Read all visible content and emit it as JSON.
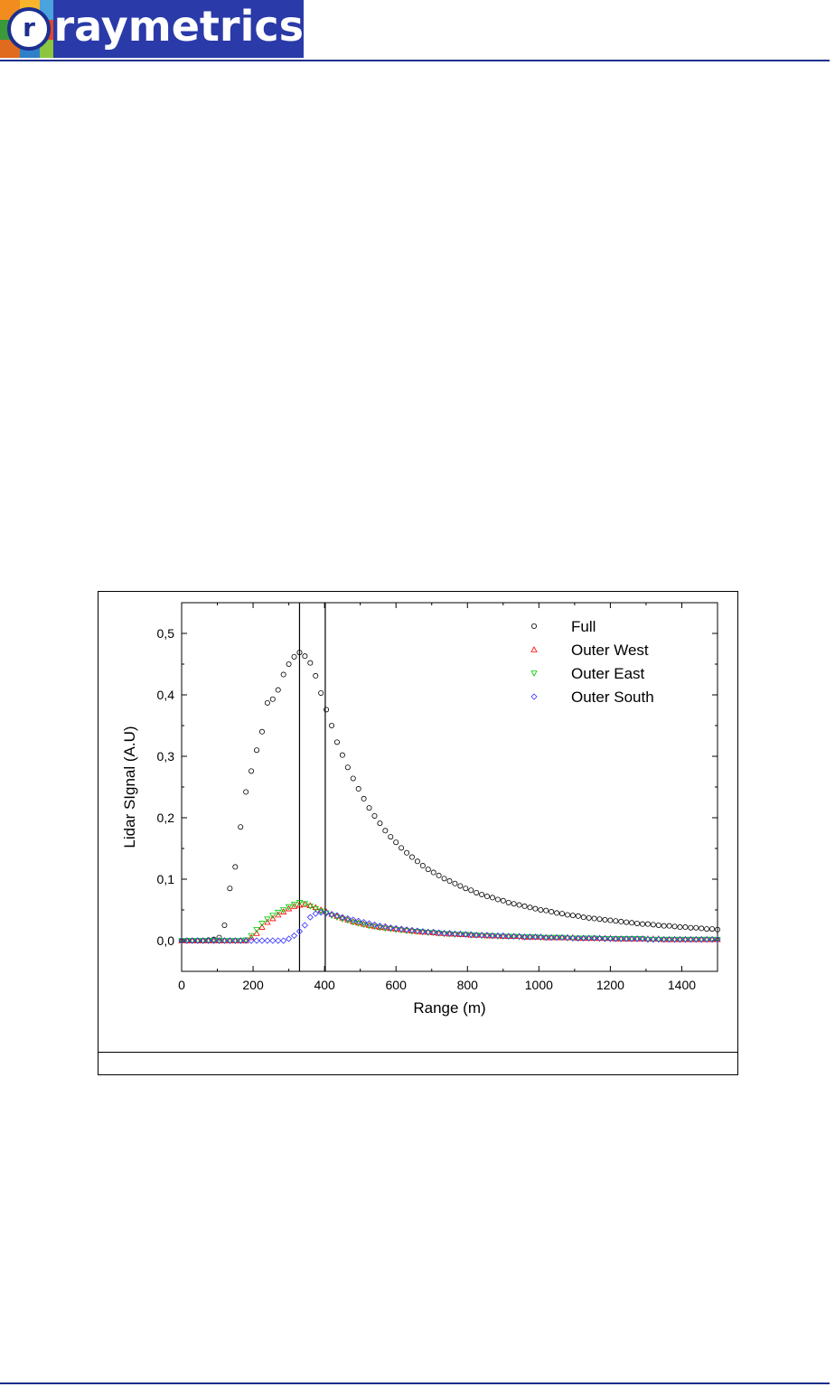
{
  "header": {
    "logo_letter": "r",
    "logo_word": "raymetrics"
  },
  "colors": {
    "brand_blue": "#2a3aa8",
    "rule_blue": "#1c2f8c",
    "full": "#000000",
    "outer_west": "#ff0000",
    "outer_east": "#00cc00",
    "outer_south": "#3333ff"
  },
  "figure": {
    "caption": ""
  },
  "chart_data": {
    "type": "scatter",
    "title": "",
    "xlabel": "Range (m)",
    "ylabel": "Lidar SIgnal (A.U)",
    "xlim": [
      0,
      1500
    ],
    "ylim": [
      -0.05,
      0.55
    ],
    "xticks": [
      0,
      200,
      400,
      600,
      800,
      1000,
      1200,
      1400
    ],
    "xtick_labels": [
      "0",
      "200",
      "400",
      "600",
      "800",
      "1000",
      "1200",
      "1400"
    ],
    "yticks": [
      0.0,
      0.1,
      0.2,
      0.3,
      0.4,
      0.5
    ],
    "ytick_labels": [
      "0,0",
      "0,1",
      "0,2",
      "0,3",
      "0,4",
      "0,5"
    ],
    "grid": false,
    "legend_position": "top-right",
    "vlines": [
      330,
      402
    ],
    "series": [
      {
        "name": "Full",
        "marker": "circle",
        "color": "#000000",
        "x": [
          0,
          15,
          30,
          45,
          60,
          75,
          90,
          105,
          120,
          135,
          150,
          165,
          180,
          195,
          210,
          225,
          240,
          255,
          270,
          285,
          300,
          315,
          330,
          345,
          360,
          375,
          390,
          405,
          420,
          435,
          450,
          465,
          480,
          495,
          510,
          525,
          540,
          555,
          570,
          585,
          600,
          615,
          630,
          645,
          660,
          675,
          690,
          705,
          720,
          735,
          750,
          765,
          780,
          795,
          810,
          825,
          840,
          855,
          870,
          885,
          900,
          915,
          930,
          945,
          960,
          975,
          990,
          1005,
          1020,
          1035,
          1050,
          1065,
          1080,
          1095,
          1110,
          1125,
          1140,
          1155,
          1170,
          1185,
          1200,
          1215,
          1230,
          1245,
          1260,
          1275,
          1290,
          1305,
          1320,
          1335,
          1350,
          1365,
          1380,
          1395,
          1410,
          1425,
          1440,
          1455,
          1470,
          1485,
          1500
        ],
        "y": [
          0.0,
          0.0,
          0.0,
          0.0,
          0.0,
          0.001,
          0.002,
          0.005,
          0.025,
          0.085,
          0.12,
          0.185,
          0.242,
          0.276,
          0.31,
          0.34,
          0.387,
          0.393,
          0.408,
          0.433,
          0.45,
          0.462,
          0.469,
          0.463,
          0.452,
          0.431,
          0.403,
          0.376,
          0.35,
          0.323,
          0.302,
          0.282,
          0.264,
          0.247,
          0.231,
          0.216,
          0.203,
          0.191,
          0.179,
          0.169,
          0.16,
          0.151,
          0.143,
          0.136,
          0.129,
          0.122,
          0.116,
          0.111,
          0.106,
          0.101,
          0.097,
          0.093,
          0.089,
          0.085,
          0.082,
          0.078,
          0.075,
          0.072,
          0.07,
          0.067,
          0.065,
          0.062,
          0.06,
          0.058,
          0.056,
          0.054,
          0.052,
          0.05,
          0.049,
          0.047,
          0.045,
          0.044,
          0.042,
          0.041,
          0.04,
          0.038,
          0.037,
          0.036,
          0.035,
          0.034,
          0.033,
          0.032,
          0.031,
          0.03,
          0.029,
          0.028,
          0.027,
          0.027,
          0.026,
          0.025,
          0.024,
          0.024,
          0.023,
          0.022,
          0.022,
          0.021,
          0.021,
          0.02,
          0.019,
          0.019,
          0.018
        ]
      },
      {
        "name": "Outer West",
        "marker": "triangle-up",
        "color": "#ff0000",
        "x": [
          0,
          15,
          30,
          45,
          60,
          75,
          90,
          105,
          120,
          135,
          150,
          165,
          180,
          195,
          210,
          225,
          240,
          255,
          270,
          285,
          300,
          315,
          330,
          345,
          360,
          375,
          390,
          405,
          420,
          435,
          450,
          465,
          480,
          495,
          510,
          525,
          540,
          555,
          570,
          585,
          600,
          615,
          630,
          645,
          660,
          675,
          690,
          705,
          720,
          735,
          750,
          765,
          780,
          795,
          810,
          825,
          840,
          855,
          870,
          885,
          900,
          915,
          930,
          945,
          960,
          975,
          990,
          1005,
          1020,
          1035,
          1050,
          1065,
          1080,
          1095,
          1110,
          1125,
          1140,
          1155,
          1170,
          1185,
          1200,
          1215,
          1230,
          1245,
          1260,
          1275,
          1290,
          1305,
          1320,
          1335,
          1350,
          1365,
          1380,
          1395,
          1410,
          1425,
          1440,
          1455,
          1470,
          1485,
          1500
        ],
        "y": [
          0.0,
          0.0,
          0.0,
          0.0,
          0.0,
          0.0,
          0.0,
          0.0,
          0.0,
          0.0,
          0.0,
          0.0,
          0.0,
          0.005,
          0.012,
          0.022,
          0.03,
          0.036,
          0.042,
          0.047,
          0.052,
          0.056,
          0.058,
          0.059,
          0.057,
          0.054,
          0.05,
          0.047,
          0.043,
          0.04,
          0.037,
          0.034,
          0.031,
          0.029,
          0.027,
          0.025,
          0.023,
          0.022,
          0.021,
          0.02,
          0.019,
          0.018,
          0.017,
          0.016,
          0.015,
          0.014,
          0.014,
          0.013,
          0.012,
          0.012,
          0.011,
          0.011,
          0.01,
          0.01,
          0.009,
          0.009,
          0.009,
          0.008,
          0.008,
          0.008,
          0.007,
          0.007,
          0.007,
          0.007,
          0.006,
          0.006,
          0.006,
          0.006,
          0.005,
          0.005,
          0.005,
          0.005,
          0.005,
          0.005,
          0.004,
          0.004,
          0.004,
          0.004,
          0.004,
          0.004,
          0.004,
          0.003,
          0.003,
          0.003,
          0.003,
          0.003,
          0.003,
          0.003,
          0.003,
          0.003,
          0.002,
          0.002,
          0.002,
          0.002,
          0.002,
          0.002,
          0.002,
          0.002,
          0.002,
          0.002,
          0.002
        ]
      },
      {
        "name": "Outer East",
        "marker": "triangle-down",
        "color": "#00cc00",
        "x": [
          0,
          15,
          30,
          45,
          60,
          75,
          90,
          105,
          120,
          135,
          150,
          165,
          180,
          195,
          210,
          225,
          240,
          255,
          270,
          285,
          300,
          315,
          330,
          345,
          360,
          375,
          390,
          405,
          420,
          435,
          450,
          465,
          480,
          495,
          510,
          525,
          540,
          555,
          570,
          585,
          600,
          615,
          630,
          645,
          660,
          675,
          690,
          705,
          720,
          735,
          750,
          765,
          780,
          795,
          810,
          825,
          840,
          855,
          870,
          885,
          900,
          915,
          930,
          945,
          960,
          975,
          990,
          1005,
          1020,
          1035,
          1050,
          1065,
          1080,
          1095,
          1110,
          1125,
          1140,
          1155,
          1170,
          1185,
          1200,
          1215,
          1230,
          1245,
          1260,
          1275,
          1290,
          1305,
          1320,
          1335,
          1350,
          1365,
          1380,
          1395,
          1410,
          1425,
          1440,
          1455,
          1470,
          1485,
          1500
        ],
        "y": [
          0.0,
          0.0,
          0.0,
          0.0,
          0.0,
          0.0,
          0.0,
          0.0,
          0.0,
          0.0,
          0.0,
          0.0,
          0.001,
          0.008,
          0.018,
          0.028,
          0.035,
          0.041,
          0.046,
          0.05,
          0.055,
          0.059,
          0.062,
          0.06,
          0.056,
          0.052,
          0.048,
          0.045,
          0.041,
          0.038,
          0.035,
          0.033,
          0.03,
          0.028,
          0.026,
          0.024,
          0.023,
          0.021,
          0.02,
          0.019,
          0.018,
          0.017,
          0.016,
          0.015,
          0.015,
          0.014,
          0.013,
          0.013,
          0.012,
          0.011,
          0.011,
          0.01,
          0.01,
          0.01,
          0.009,
          0.009,
          0.008,
          0.008,
          0.008,
          0.007,
          0.007,
          0.007,
          0.007,
          0.006,
          0.006,
          0.006,
          0.006,
          0.005,
          0.005,
          0.005,
          0.005,
          0.005,
          0.004,
          0.004,
          0.004,
          0.004,
          0.004,
          0.004,
          0.003,
          0.003,
          0.003,
          0.003,
          0.003,
          0.003,
          0.003,
          0.003,
          0.003,
          0.002,
          0.002,
          0.002,
          0.002,
          0.002,
          0.002,
          0.002,
          0.002,
          0.002,
          0.002,
          0.002,
          0.002,
          0.002,
          0.002
        ]
      },
      {
        "name": "Outer South",
        "marker": "diamond",
        "color": "#3333ff",
        "x": [
          0,
          15,
          30,
          45,
          60,
          75,
          90,
          105,
          120,
          135,
          150,
          165,
          180,
          195,
          210,
          225,
          240,
          255,
          270,
          285,
          300,
          315,
          330,
          345,
          360,
          375,
          390,
          405,
          420,
          435,
          450,
          465,
          480,
          495,
          510,
          525,
          540,
          555,
          570,
          585,
          600,
          615,
          630,
          645,
          660,
          675,
          690,
          705,
          720,
          735,
          750,
          765,
          780,
          795,
          810,
          825,
          840,
          855,
          870,
          885,
          900,
          915,
          930,
          945,
          960,
          975,
          990,
          1005,
          1020,
          1035,
          1050,
          1065,
          1080,
          1095,
          1110,
          1125,
          1140,
          1155,
          1170,
          1185,
          1200,
          1215,
          1230,
          1245,
          1260,
          1275,
          1290,
          1305,
          1320,
          1335,
          1350,
          1365,
          1380,
          1395,
          1410,
          1425,
          1440,
          1455,
          1470,
          1485,
          1500
        ],
        "y": [
          0.0,
          0.0,
          0.0,
          0.0,
          0.0,
          0.0,
          0.0,
          0.0,
          0.0,
          0.0,
          0.0,
          0.0,
          0.0,
          0.0,
          0.0,
          0.0,
          0.0,
          0.0,
          0.0,
          0.0,
          0.003,
          0.008,
          0.015,
          0.025,
          0.038,
          0.044,
          0.046,
          0.045,
          0.043,
          0.041,
          0.038,
          0.036,
          0.034,
          0.032,
          0.03,
          0.028,
          0.026,
          0.024,
          0.023,
          0.021,
          0.02,
          0.019,
          0.018,
          0.017,
          0.016,
          0.015,
          0.014,
          0.014,
          0.013,
          0.012,
          0.012,
          0.011,
          0.011,
          0.01,
          0.01,
          0.009,
          0.009,
          0.009,
          0.008,
          0.008,
          0.008,
          0.007,
          0.007,
          0.007,
          0.006,
          0.006,
          0.006,
          0.006,
          0.005,
          0.005,
          0.005,
          0.005,
          0.005,
          0.004,
          0.004,
          0.004,
          0.004,
          0.004,
          0.004,
          0.003,
          0.003,
          0.003,
          0.003,
          0.003,
          0.003,
          0.003,
          0.003,
          0.002,
          0.002,
          0.002,
          0.002,
          0.002,
          0.002,
          0.002,
          0.002,
          0.002,
          0.002,
          0.002,
          0.002,
          0.002,
          0.002
        ]
      }
    ]
  }
}
